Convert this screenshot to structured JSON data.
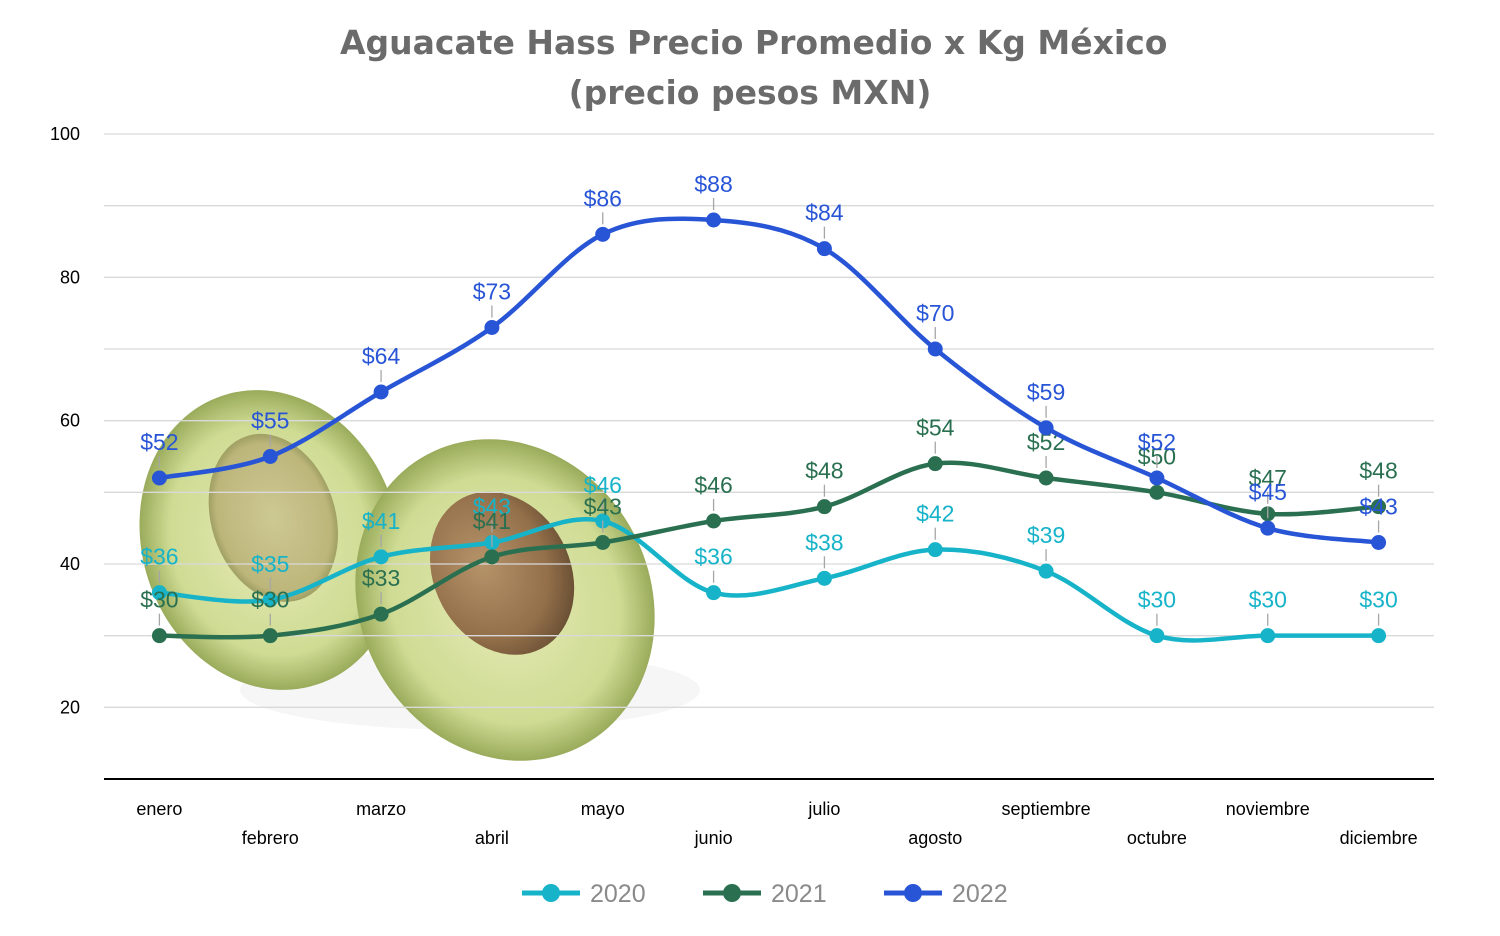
{
  "chart_data": {
    "type": "line",
    "title": "Aguacate Hass Precio Promedio x Kg México",
    "subtitle": "(precio pesos MXN)",
    "xlabel": "",
    "ylabel": "",
    "categories": [
      "enero",
      "febrero",
      "marzo",
      "abril",
      "mayo",
      "junio",
      "julio",
      "agosto",
      "septiembre",
      "octubre",
      "noviembre",
      "diciembre"
    ],
    "ylim": [
      10,
      100
    ],
    "yticks": [
      20,
      40,
      60,
      80,
      100
    ],
    "grid": true,
    "smooth": true,
    "legend_position": "bottom",
    "label_prefix": "$",
    "series": [
      {
        "name": "2020",
        "color": "#17b3c9",
        "values": [
          36,
          35,
          41,
          43,
          46,
          36,
          38,
          42,
          39,
          30,
          30,
          30
        ]
      },
      {
        "name": "2021",
        "color": "#2a7050",
        "values": [
          30,
          30,
          33,
          41,
          43,
          46,
          48,
          54,
          52,
          50,
          47,
          48
        ]
      },
      {
        "name": "2022",
        "color": "#2855d6",
        "values": [
          52,
          55,
          64,
          73,
          86,
          88,
          84,
          70,
          59,
          52,
          45,
          43
        ]
      }
    ]
  }
}
